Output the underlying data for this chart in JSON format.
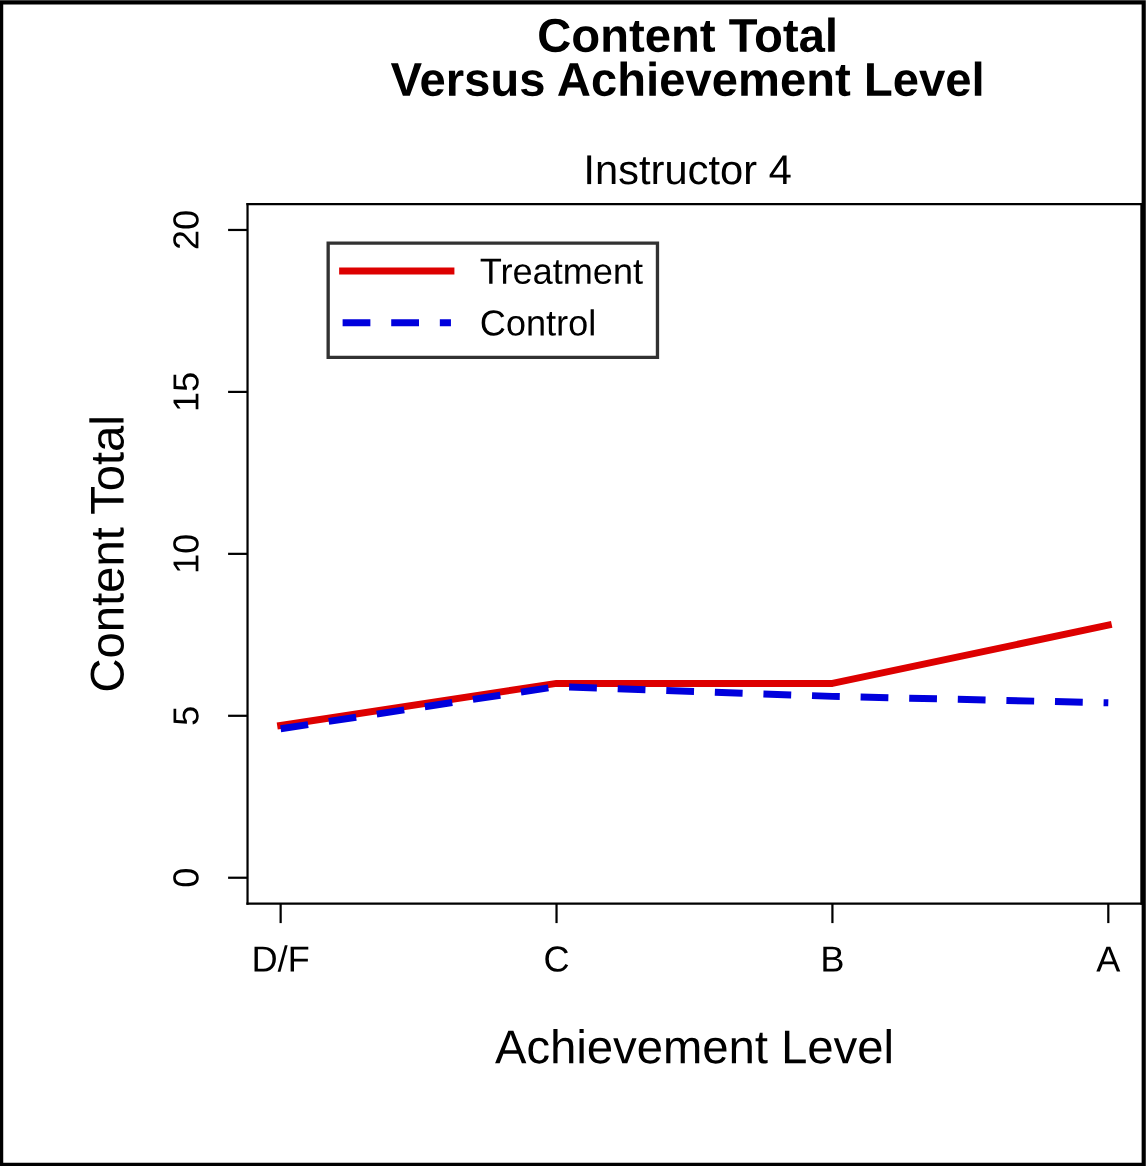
{
  "chart_data": {
    "type": "line",
    "title": "Content Total\nVersus Achievement Level",
    "subtitle": "Instructor 4",
    "xlabel": "Achievement Level",
    "ylabel": "Content Total",
    "categories": [
      "D/F",
      "C",
      "B",
      "A"
    ],
    "series": [
      {
        "name": "Treatment",
        "color": "#dd0000",
        "values": [
          4.7,
          6.0,
          6.0,
          7.8
        ],
        "line_style": "solid"
      },
      {
        "name": "Control",
        "color": "#0000dd",
        "values": [
          4.6,
          5.9,
          5.6,
          5.4
        ],
        "line_style": "dashed"
      }
    ],
    "ylim": [
      -0.8,
      20.8
    ],
    "yticks": [
      0,
      5,
      10,
      15,
      20
    ],
    "grid": false,
    "legend": "top left",
    "marker": "none"
  }
}
